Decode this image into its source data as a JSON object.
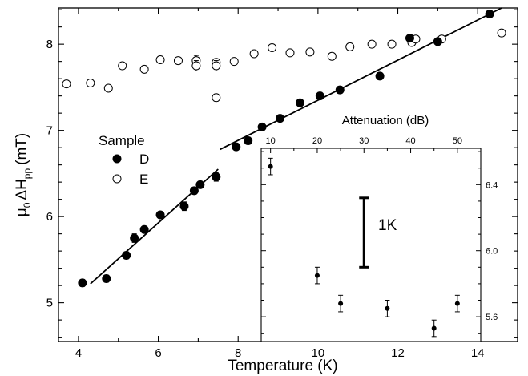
{
  "chart_data": {
    "type": "scatter",
    "xlabel": "Temperature (K)",
    "ylabel_main": "μ",
    "ylabel_sub0": "0",
    "ylabel_mid": "ΔH",
    "ylabel_subpp": "pp",
    "ylabel_unit": "(mT)",
    "xlim": [
      3.5,
      15
    ],
    "ylim": [
      4.55,
      8.42
    ],
    "xticks": [
      "4",
      "6",
      "8",
      "10",
      "12",
      "14"
    ],
    "yticks": [
      "5",
      "6",
      "7",
      "8"
    ],
    "legend": {
      "title": "Sample",
      "entries": [
        {
          "label": "D",
          "marker": "filled-circle"
        },
        {
          "label": "E",
          "marker": "open-circle"
        }
      ],
      "placement": "left-middle"
    },
    "series": [
      {
        "name": "D",
        "marker": "filled",
        "points": [
          {
            "x": 4.1,
            "y": 5.23,
            "err": 0.04
          },
          {
            "x": 4.7,
            "y": 5.28,
            "err": 0.04
          },
          {
            "x": 5.2,
            "y": 5.55,
            "err": 0.04
          },
          {
            "x": 5.4,
            "y": 5.75,
            "err": 0.05
          },
          {
            "x": 5.65,
            "y": 5.85,
            "err": 0.04
          },
          {
            "x": 6.05,
            "y": 6.02,
            "err": 0.03
          },
          {
            "x": 6.65,
            "y": 6.12,
            "err": 0.05
          },
          {
            "x": 6.9,
            "y": 6.3,
            "err": 0.04
          },
          {
            "x": 7.05,
            "y": 6.37,
            "err": 0.03
          },
          {
            "x": 7.45,
            "y": 6.46,
            "err": 0.05
          },
          {
            "x": 7.95,
            "y": 6.81,
            "err": 0.03
          },
          {
            "x": 8.25,
            "y": 6.88,
            "err": 0.04
          },
          {
            "x": 8.6,
            "y": 7.04,
            "err": 0.04
          },
          {
            "x": 9.05,
            "y": 7.14,
            "err": 0.03
          },
          {
            "x": 9.55,
            "y": 7.32,
            "err": 0.04
          },
          {
            "x": 10.05,
            "y": 7.4,
            "err": 0.04
          },
          {
            "x": 10.55,
            "y": 7.47,
            "err": 0.04
          },
          {
            "x": 11.55,
            "y": 7.63,
            "err": 0.04
          },
          {
            "x": 12.3,
            "y": 8.07,
            "err": 0.03
          },
          {
            "x": 13.0,
            "y": 8.03,
            "err": 0.03
          },
          {
            "x": 14.3,
            "y": 8.35,
            "err": 0.03
          }
        ]
      },
      {
        "name": "E",
        "marker": "open",
        "points": [
          {
            "x": 3.7,
            "y": 7.54,
            "err": 0.0
          },
          {
            "x": 4.3,
            "y": 7.55,
            "err": 0.0
          },
          {
            "x": 4.75,
            "y": 7.49,
            "err": 0.0
          },
          {
            "x": 5.1,
            "y": 7.75,
            "err": 0.0
          },
          {
            "x": 5.65,
            "y": 7.71,
            "err": 0.0
          },
          {
            "x": 6.05,
            "y": 7.82,
            "err": 0.0
          },
          {
            "x": 6.5,
            "y": 7.81,
            "err": 0.0
          },
          {
            "x": 6.95,
            "y": 7.81,
            "err": 0.06
          },
          {
            "x": 6.95,
            "y": 7.75,
            "err": 0.06
          },
          {
            "x": 7.45,
            "y": 7.79,
            "err": 0.04
          },
          {
            "x": 7.45,
            "y": 7.75,
            "err": 0.06
          },
          {
            "x": 7.45,
            "y": 7.38,
            "err": 0.04
          },
          {
            "x": 7.9,
            "y": 7.8,
            "err": 0.0
          },
          {
            "x": 8.4,
            "y": 7.89,
            "err": 0.0
          },
          {
            "x": 8.85,
            "y": 7.96,
            "err": 0.0
          },
          {
            "x": 9.3,
            "y": 7.9,
            "err": 0.0
          },
          {
            "x": 9.8,
            "y": 7.91,
            "err": 0.0
          },
          {
            "x": 10.35,
            "y": 7.86,
            "err": 0.0
          },
          {
            "x": 10.8,
            "y": 7.97,
            "err": 0.0
          },
          {
            "x": 11.35,
            "y": 8.0,
            "err": 0.0
          },
          {
            "x": 11.85,
            "y": 8.0,
            "err": 0.0
          },
          {
            "x": 12.35,
            "y": 8.02,
            "err": 0.0
          },
          {
            "x": 12.45,
            "y": 8.06,
            "err": 0.0
          },
          {
            "x": 13.1,
            "y": 8.06,
            "err": 0.0
          },
          {
            "x": 14.6,
            "y": 8.13,
            "err": 0.0
          }
        ]
      }
    ],
    "fit_lines": [
      {
        "x1": 4.3,
        "y1": 5.22,
        "x2": 7.5,
        "y2": 6.55
      },
      {
        "x1": 7.55,
        "y1": 6.78,
        "x2": 14.6,
        "y2": 8.42
      }
    ],
    "inset": {
      "xlabel": "Attenuation (dB)",
      "xlim": [
        8,
        55
      ],
      "ylim": [
        5.45,
        6.62
      ],
      "xticks": [
        "10",
        "20",
        "30",
        "40",
        "50"
      ],
      "yticks": [
        "5.6",
        "6.0",
        "6.4"
      ],
      "scale_bar_label": "1K",
      "scale_bar": {
        "x": 30,
        "y_low": 5.9,
        "y_high": 6.32
      },
      "points": [
        {
          "x": 10,
          "y": 6.51,
          "err": 0.05
        },
        {
          "x": 20,
          "y": 5.85,
          "err": 0.05
        },
        {
          "x": 25,
          "y": 5.68,
          "err": 0.05
        },
        {
          "x": 35,
          "y": 5.65,
          "err": 0.05
        },
        {
          "x": 45,
          "y": 5.53,
          "err": 0.05
        },
        {
          "x": 50,
          "y": 5.68,
          "err": 0.05
        }
      ]
    }
  }
}
